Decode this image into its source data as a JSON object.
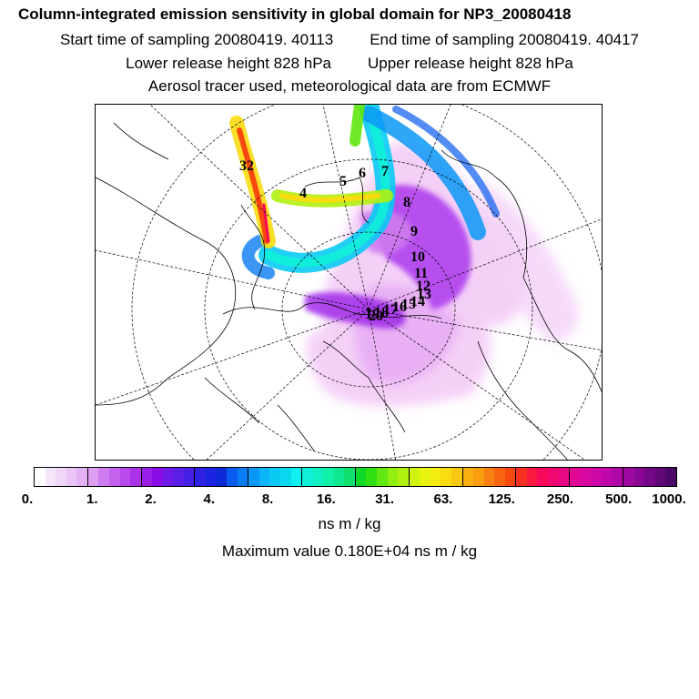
{
  "header": {
    "title": "Column-integrated emission sensitivity in global domain for NP3_20080418",
    "start_time": "Start time of sampling 20080419. 40113",
    "end_time": "End time of sampling 20080419. 40417",
    "lower_release": "Lower release height  828 hPa",
    "upper_release": "Upper release height  828 hPa",
    "tracer_note": "Aerosol tracer used, meteorological data are from ECMWF"
  },
  "map": {
    "labels": [
      "32",
      "4",
      "5",
      "6",
      "7",
      "8",
      "9",
      "10",
      "11",
      "12",
      "13",
      "14",
      "15",
      "16",
      "17",
      "18",
      "19",
      "20"
    ]
  },
  "colorbar": {
    "colors": [
      "#ffffff",
      "#f6e6fb",
      "#f0d6f8",
      "#eac4f6",
      "#e4b2f4",
      "#de9ef2",
      "#cf7cf0",
      "#c462ee",
      "#b84aec",
      "#ab33ea",
      "#9b1ee8",
      "#8a0de8",
      "#6f1ae8",
      "#5b1ee8",
      "#4620e6",
      "#3022e4",
      "#1a24e2",
      "#0a2ad6",
      "#0a5cf0",
      "#0a7cf4",
      "#0a98f6",
      "#0ab4f6",
      "#0acaf4",
      "#0ad8ee",
      "#10f0f0",
      "#10f0d8",
      "#10f0c0",
      "#10f0a6",
      "#10e890",
      "#10e070",
      "#10d828",
      "#30e010",
      "#60e810",
      "#90ee10",
      "#b0f010",
      "#d0f410",
      "#e8f410",
      "#f4ec10",
      "#f8dc10",
      "#f8c810",
      "#f8b010",
      "#f89c10",
      "#f88010",
      "#f86410",
      "#f84810",
      "#f83020",
      "#f81840",
      "#f8085a",
      "#f00870",
      "#e80884",
      "#e00894",
      "#d808a0",
      "#cc08a6",
      "#c008aa",
      "#b008a8",
      "#9c08a0",
      "#880894",
      "#740886",
      "#600878",
      "#4c0866"
    ],
    "ticks": [
      "0.",
      "1.",
      "2.",
      "4.",
      "8.",
      "16.",
      "31.",
      "63.",
      "125.",
      "250.",
      "500.",
      "1000."
    ],
    "units": "ns m / kg"
  },
  "footer": {
    "max_value": "Maximum value  0.180E+04 ns m / kg"
  }
}
